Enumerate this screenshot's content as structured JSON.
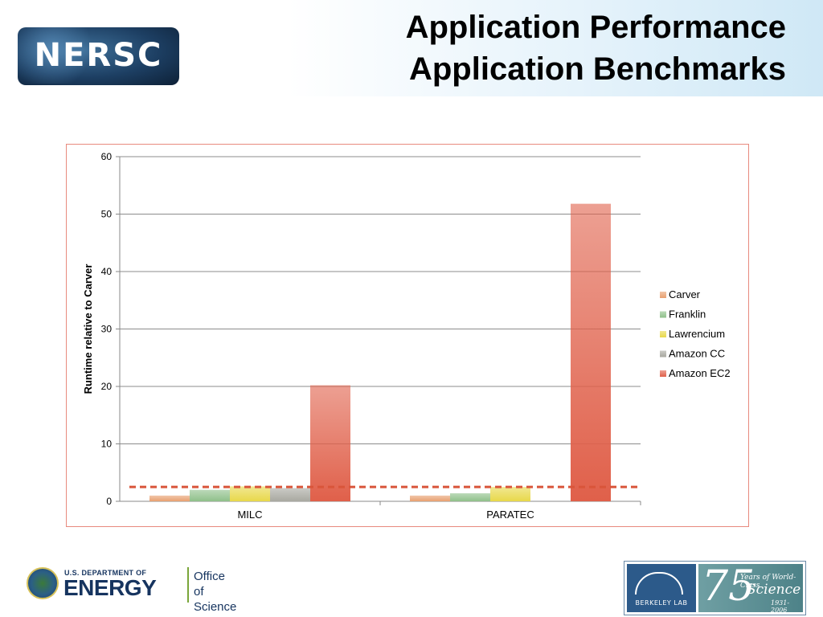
{
  "header": {
    "logo_text": "NERSC",
    "title_line1": "Application Performance",
    "title_line2": "Application Benchmarks"
  },
  "chart_data": {
    "type": "bar",
    "categories": [
      "MILC",
      "PARATEC"
    ],
    "series": [
      {
        "name": "Carver",
        "values": [
          1,
          1
        ],
        "color": "#e8a070"
      },
      {
        "name": "Franklin",
        "values": [
          2.0,
          1.4
        ],
        "color": "#8fc08a"
      },
      {
        "name": "Lawrencium",
        "values": [
          2.6,
          2.5
        ],
        "color": "#e8d84a"
      },
      {
        "name": "Amazon CC",
        "values": [
          2.3,
          null
        ],
        "color": "#a8a8a0"
      },
      {
        "name": "Amazon EC2",
        "values": [
          20.2,
          51.8
        ],
        "color": "#e0604a"
      }
    ],
    "ylabel": "Runtime relative to Carver",
    "ylim": [
      0,
      60
    ],
    "yticks": [
      0,
      10,
      20,
      30,
      40,
      50,
      60
    ],
    "reference_line": {
      "value": 2.5,
      "style": "dashed",
      "color": "#d9553a"
    },
    "grid": true,
    "legend_position": "right"
  },
  "footer": {
    "doe_small": "U.S. DEPARTMENT OF",
    "doe_big": "ENERGY",
    "office_line1": "Office of",
    "office_line2": "Science",
    "lab_name": "BERKELEY LAB",
    "anniv_number": "75",
    "anniv_line1": "Years of World-Class",
    "anniv_line2": "Science",
    "anniv_line3": "1931-2006"
  }
}
